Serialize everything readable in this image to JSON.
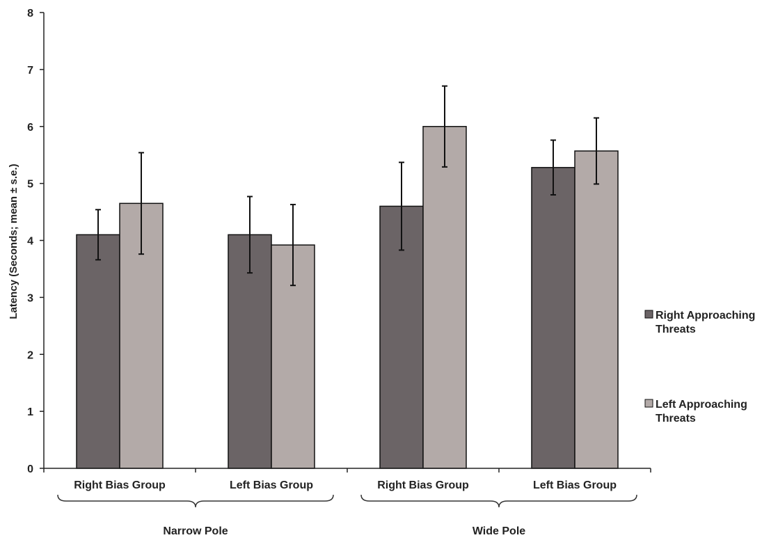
{
  "chart_data": {
    "type": "bar",
    "ylabel": "Latency (Seconds; mean ± s.e.)",
    "ylim": [
      0,
      8
    ],
    "yticks": [
      "0",
      "1",
      "2",
      "3",
      "4",
      "5",
      "6",
      "7",
      "8"
    ],
    "groups": [
      {
        "label": "Narrow Pole",
        "categories": [
          "Right Bias Group",
          "Left Bias Group"
        ]
      },
      {
        "label": "Wide Pole",
        "categories": [
          "Right Bias Group",
          "Left Bias Group"
        ]
      }
    ],
    "categories": [
      "Right Bias Group",
      "Left Bias Group",
      "Right Bias Group",
      "Left Bias Group"
    ],
    "series": [
      {
        "name": "Right Approaching Threats",
        "name_lines": [
          "Right Approaching",
          "Threats"
        ],
        "color": "#6b6466",
        "values": [
          4.1,
          4.1,
          4.6,
          5.28
        ],
        "errors": [
          0.44,
          0.67,
          0.77,
          0.48
        ]
      },
      {
        "name": "Left Approaching Threats",
        "name_lines": [
          "Left Approaching",
          "Threats"
        ],
        "color": "#b3aaa8",
        "values": [
          4.65,
          3.92,
          6.0,
          5.57
        ],
        "errors": [
          0.89,
          0.71,
          0.71,
          0.58
        ]
      }
    ],
    "legend_position": "right",
    "grid": false
  }
}
